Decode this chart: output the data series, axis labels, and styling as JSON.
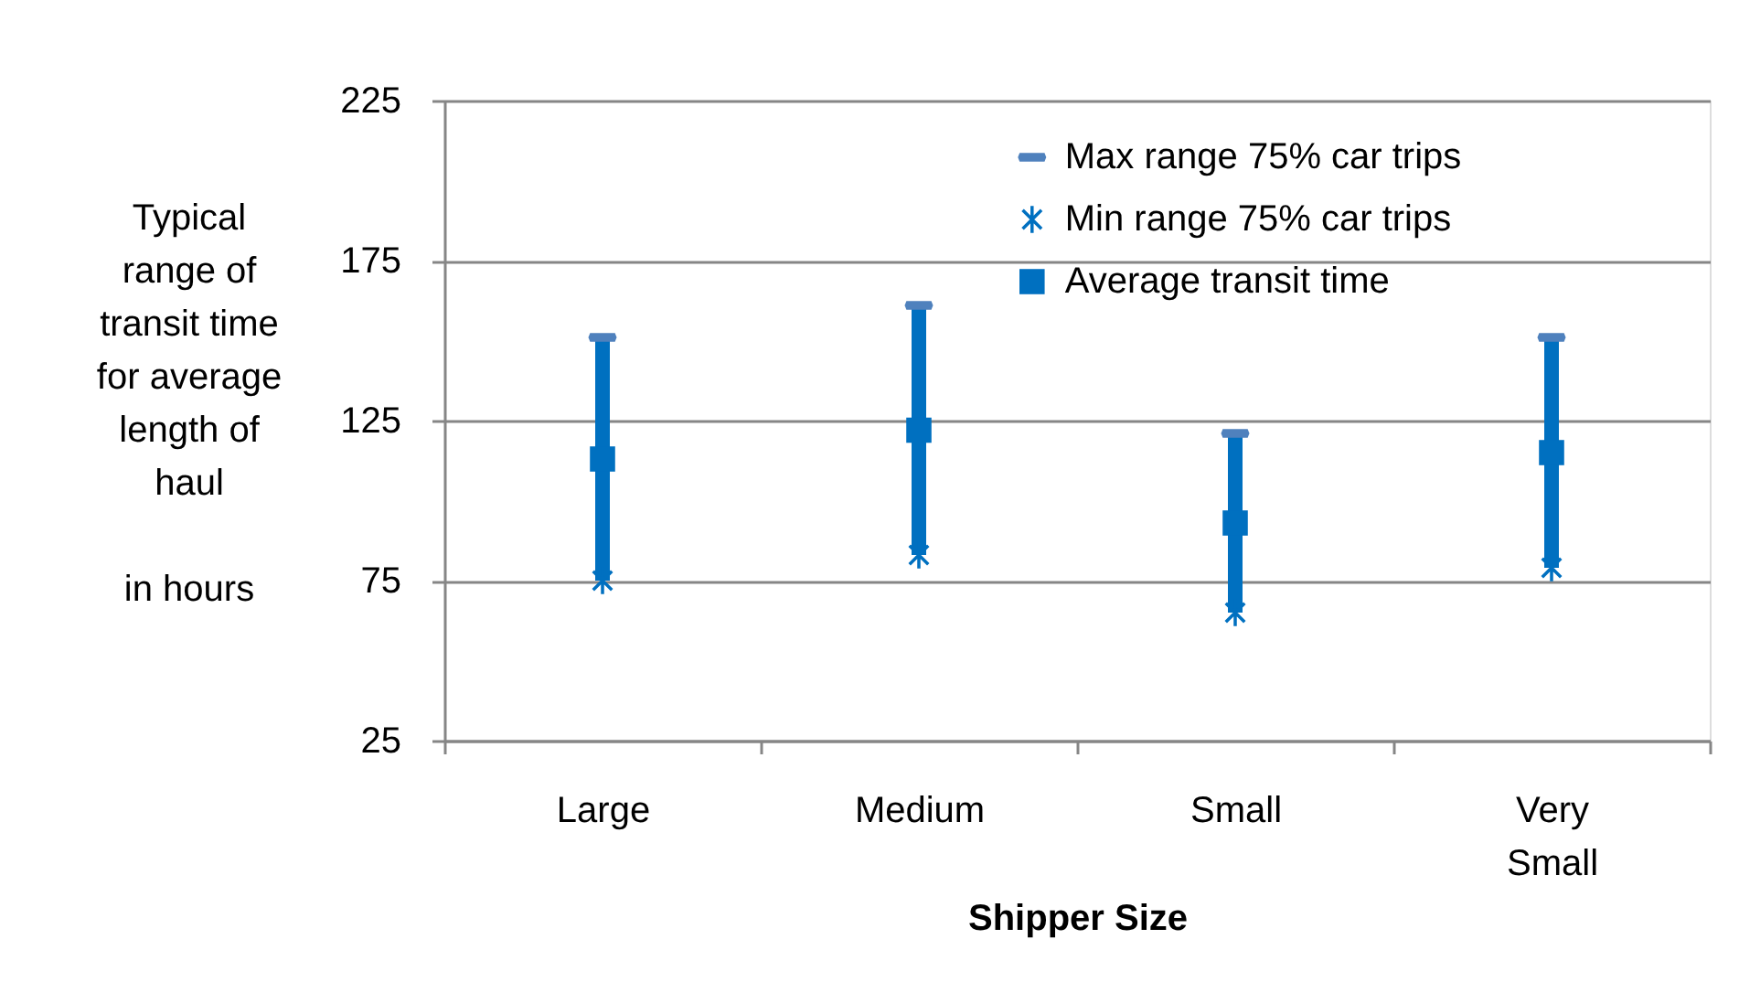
{
  "chart_data": {
    "type": "scatter",
    "categories": [
      "Large",
      "Medium",
      "Small",
      "Very Small"
    ],
    "xlabel": "Shipper Size",
    "ylabel": "Typical range of transit time for average length of haul\n\nin hours",
    "ylim": [
      25,
      225
    ],
    "yticks": [
      25,
      75,
      125,
      175,
      225
    ],
    "grid": "y",
    "legend": "top right",
    "series": [
      {
        "type": "bar",
        "color": "#0070c0",
        "base": [
          75,
          83,
          65,
          79
        ],
        "values": [
          76,
          78,
          56,
          72
        ]
      },
      {
        "name": "Max range 75% car trips",
        "color": "#4f81bd",
        "values": [
          151,
          161,
          121,
          151
        ]
      },
      {
        "name": "Min range 75% car trips",
        "color": "#0070c0",
        "marker": "cross",
        "values": [
          75,
          83,
          65,
          79
        ]
      },
      {
        "name": "Average transit time",
        "color": "#0070c0",
        "marker": "square",
        "values": [
          113,
          122,
          93,
          115
        ]
      }
    ]
  }
}
